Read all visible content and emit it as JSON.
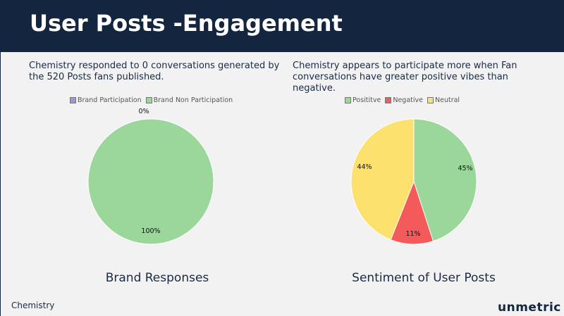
{
  "header": {
    "title": "User Posts -Engagement"
  },
  "descriptions": {
    "left": "Chemistry responded to 0 conversations generated by the 520 Posts fans published.",
    "right": "Chemistry appears to participate more when Fan conversations have greater positive vibes than negative."
  },
  "footer": {
    "label": "Chemistry",
    "logo": "unmetric"
  },
  "chart_data": [
    {
      "type": "pie",
      "title": "Brand Responses",
      "legend_position": "top",
      "slices": [
        {
          "label": "Brand Participation",
          "value": 0,
          "display": "0%",
          "color": "#9999cc"
        },
        {
          "label": "Brand Non Participation",
          "value": 100,
          "display": "100%",
          "color": "#9bd69b"
        }
      ]
    },
    {
      "type": "pie",
      "title": "Sentiment of User Posts",
      "legend_position": "top",
      "slices": [
        {
          "label": "Posititve",
          "value": 45,
          "display": "45%",
          "color": "#9bd69b"
        },
        {
          "label": "Negative",
          "value": 11,
          "display": "11%",
          "color": "#f55a5a"
        },
        {
          "label": "Neutral",
          "value": 44,
          "display": "44%",
          "color": "#fde16e"
        }
      ]
    }
  ]
}
